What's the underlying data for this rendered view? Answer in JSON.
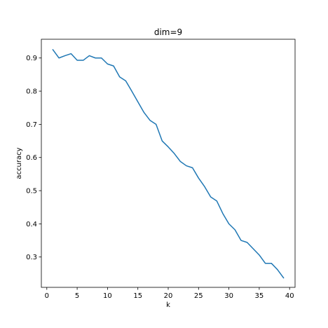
{
  "chart_data": {
    "type": "line",
    "title": "dim=9",
    "xlabel": "k",
    "ylabel": "accuracy",
    "xlim": [
      -0.9,
      40.9
    ],
    "ylim": [
      0.2085,
      0.9565
    ],
    "grid": false,
    "x_ticks": [
      0,
      5,
      10,
      15,
      20,
      25,
      30,
      35,
      40
    ],
    "y_ticks": [
      0.3,
      0.4,
      0.5,
      0.6,
      0.7,
      0.8,
      0.9
    ],
    "series": [
      {
        "color": "#1f77b4",
        "x": [
          1,
          2,
          3,
          4,
          5,
          6,
          7,
          8,
          9,
          10,
          11,
          12,
          13,
          14,
          15,
          16,
          17,
          18,
          19,
          20,
          21,
          22,
          23,
          24,
          25,
          26,
          27,
          28,
          29,
          30,
          31,
          32,
          33,
          34,
          35,
          36,
          37,
          38,
          39
        ],
        "y": [
          0.925,
          0.9,
          0.907,
          0.913,
          0.893,
          0.893,
          0.907,
          0.9,
          0.9,
          0.882,
          0.876,
          0.843,
          0.831,
          0.8,
          0.768,
          0.736,
          0.712,
          0.7,
          0.65,
          0.632,
          0.612,
          0.588,
          0.575,
          0.569,
          0.538,
          0.512,
          0.481,
          0.469,
          0.431,
          0.4,
          0.382,
          0.35,
          0.344,
          0.325,
          0.306,
          0.281,
          0.281,
          0.262,
          0.237
        ]
      }
    ]
  }
}
